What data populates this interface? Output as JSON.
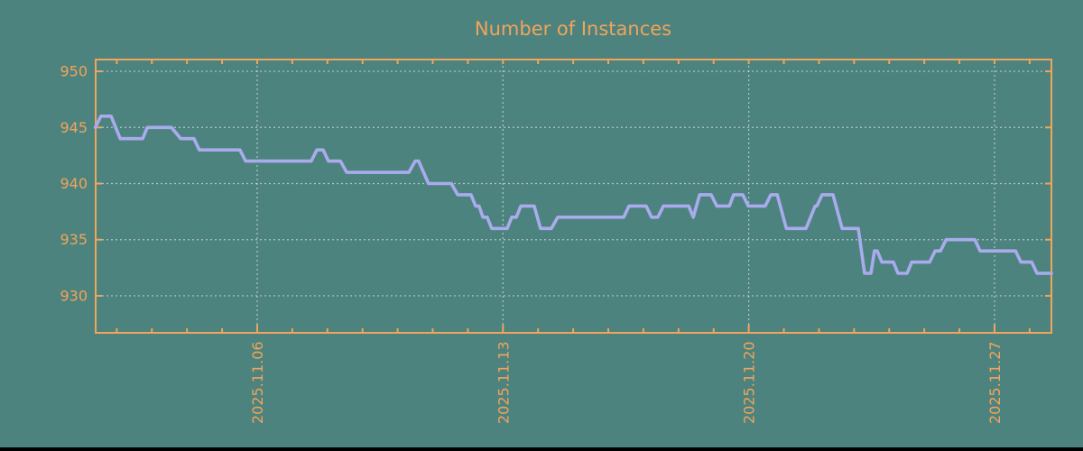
{
  "colors": {
    "background": "#4d837e",
    "accent_orange": "#f0a45c",
    "series_line": "#a9abee",
    "gridline": "rgba(255,255,255,0.55)",
    "bottom_bar": "#000000"
  },
  "chart_data": {
    "type": "line",
    "title": "Number of Instances",
    "xlabel": "",
    "ylabel": "",
    "grid": true,
    "legend": "none",
    "x_axis": {
      "unit": "date (November 2025, day-of-month)",
      "range_days": [
        1.4,
        28.62
      ],
      "major_ticks": [
        {
          "day": 6,
          "label": "2025.11.06"
        },
        {
          "day": 13,
          "label": "2025.11.13"
        },
        {
          "day": 20,
          "label": "2025.11.20"
        },
        {
          "day": 27,
          "label": "2025.11.27"
        }
      ],
      "minor_tick_days": [
        2,
        3,
        4,
        5,
        6,
        7,
        8,
        9,
        10,
        11,
        12,
        13,
        14,
        15,
        16,
        17,
        18,
        19,
        20,
        21,
        22,
        23,
        24,
        25,
        26,
        27,
        28
      ]
    },
    "y_axis": {
      "ticks": [
        930,
        935,
        940,
        945,
        950
      ],
      "range": [
        926.7,
        951.05
      ]
    },
    "points": [
      [
        1.39,
        945
      ],
      [
        1.55,
        946
      ],
      [
        1.84,
        946
      ],
      [
        2.1,
        944
      ],
      [
        2.74,
        944
      ],
      [
        2.87,
        945
      ],
      [
        3.56,
        945
      ],
      [
        3.82,
        944
      ],
      [
        4.2,
        944
      ],
      [
        4.35,
        943
      ],
      [
        5.51,
        943
      ],
      [
        5.67,
        942
      ],
      [
        7.54,
        942
      ],
      [
        7.7,
        943
      ],
      [
        7.88,
        943
      ],
      [
        8.03,
        942
      ],
      [
        8.37,
        942
      ],
      [
        8.55,
        941
      ],
      [
        10.32,
        941
      ],
      [
        10.5,
        942
      ],
      [
        10.6,
        942
      ],
      [
        10.88,
        940
      ],
      [
        11.53,
        940
      ],
      [
        11.71,
        939
      ],
      [
        12.09,
        939
      ],
      [
        12.22,
        938
      ],
      [
        12.32,
        938
      ],
      [
        12.43,
        937
      ],
      [
        12.55,
        937
      ],
      [
        12.68,
        936
      ],
      [
        13.12,
        936
      ],
      [
        13.25,
        937
      ],
      [
        13.38,
        937
      ],
      [
        13.51,
        938
      ],
      [
        13.89,
        938
      ],
      [
        14.07,
        936
      ],
      [
        14.38,
        936
      ],
      [
        14.56,
        937
      ],
      [
        16.44,
        937
      ],
      [
        16.59,
        938
      ],
      [
        17.08,
        938
      ],
      [
        17.23,
        937
      ],
      [
        17.41,
        937
      ],
      [
        17.57,
        938
      ],
      [
        18.29,
        938
      ],
      [
        18.42,
        937
      ],
      [
        18.6,
        939
      ],
      [
        18.93,
        939
      ],
      [
        19.09,
        938
      ],
      [
        19.45,
        938
      ],
      [
        19.57,
        939
      ],
      [
        19.83,
        939
      ],
      [
        19.99,
        938
      ],
      [
        20.47,
        938
      ],
      [
        20.63,
        939
      ],
      [
        20.81,
        939
      ],
      [
        21.07,
        936
      ],
      [
        21.63,
        936
      ],
      [
        21.89,
        938
      ],
      [
        21.94,
        938
      ],
      [
        22.09,
        939
      ],
      [
        22.4,
        939
      ],
      [
        22.66,
        936
      ],
      [
        23.12,
        936
      ],
      [
        23.3,
        932
      ],
      [
        23.48,
        932
      ],
      [
        23.58,
        934
      ],
      [
        23.66,
        934
      ],
      [
        23.79,
        933
      ],
      [
        24.12,
        933
      ],
      [
        24.25,
        932
      ],
      [
        24.51,
        932
      ],
      [
        24.64,
        933
      ],
      [
        25.15,
        933
      ],
      [
        25.31,
        934
      ],
      [
        25.46,
        934
      ],
      [
        25.62,
        935
      ],
      [
        26.44,
        935
      ],
      [
        26.59,
        934
      ],
      [
        27.6,
        934
      ],
      [
        27.75,
        933
      ],
      [
        28.06,
        933
      ],
      [
        28.21,
        932
      ],
      [
        28.62,
        932
      ]
    ]
  }
}
